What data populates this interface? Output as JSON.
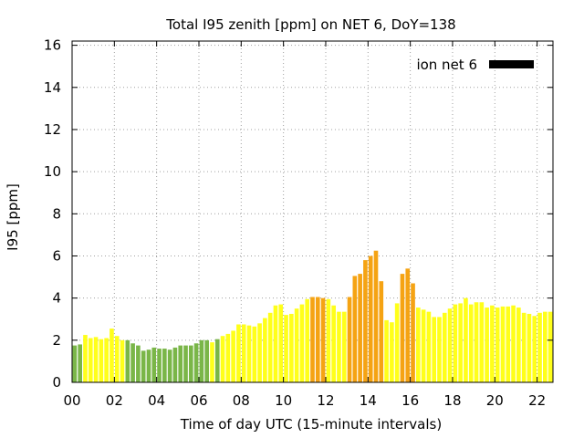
{
  "chart_data": {
    "type": "bar",
    "title": "Total I95 zenith [ppm] on NET 6, DoY=138",
    "xlabel": "Time of day UTC (15-minute intervals)",
    "ylabel": "I95 [ppm]",
    "ylim": [
      0,
      16.2
    ],
    "yticks": [
      "0",
      "2",
      "4",
      "6",
      "8",
      "10",
      "12",
      "14",
      "16"
    ],
    "xlim": [
      0,
      22.75
    ],
    "xticks": [
      "00",
      "02",
      "04",
      "06",
      "08",
      "10",
      "12",
      "14",
      "16",
      "18",
      "20",
      "22"
    ],
    "grid": true,
    "legend": {
      "label": "ion net 6",
      "position": "top-right",
      "color": "#000000"
    },
    "colors": {
      "green": "#7ab648",
      "yellow": "#ffff1a",
      "orange": "#f5a313"
    },
    "series": [
      {
        "name": "ion net 6",
        "x": [
          0,
          0.25,
          0.5,
          0.75,
          1,
          1.25,
          1.5,
          1.75,
          2,
          2.25,
          2.5,
          2.75,
          3,
          3.25,
          3.5,
          3.75,
          4,
          4.25,
          4.5,
          4.75,
          5,
          5.25,
          5.5,
          5.75,
          6,
          6.25,
          6.5,
          6.75,
          7,
          7.25,
          7.5,
          7.75,
          8,
          8.25,
          8.5,
          8.75,
          9,
          9.25,
          9.5,
          9.75,
          10,
          10.25,
          10.5,
          10.75,
          11,
          11.25,
          11.5,
          11.75,
          12,
          12.25,
          12.5,
          12.75,
          13,
          13.25,
          13.5,
          13.75,
          14,
          14.25,
          14.5,
          14.75,
          15,
          15.25,
          15.5,
          15.75,
          16,
          16.25,
          16.5,
          16.75,
          17,
          17.25,
          17.5,
          17.75,
          18,
          18.25,
          18.5,
          18.75,
          19,
          19.25,
          19.5,
          19.75,
          20,
          20.25,
          20.5,
          20.75,
          21,
          21.25,
          21.5,
          21.75,
          22,
          22.25,
          22.5
        ],
        "values": [
          1.75,
          1.8,
          2.25,
          2.1,
          2.15,
          2.05,
          2.1,
          2.55,
          2.2,
          2.0,
          2.0,
          1.85,
          1.75,
          1.5,
          1.55,
          1.65,
          1.6,
          1.6,
          1.55,
          1.65,
          1.75,
          1.75,
          1.75,
          1.85,
          2.0,
          2.0,
          1.9,
          2.05,
          2.2,
          2.3,
          2.45,
          2.75,
          2.75,
          2.7,
          2.65,
          2.8,
          3.05,
          3.3,
          3.65,
          3.7,
          3.2,
          3.25,
          3.5,
          3.7,
          3.95,
          4.05,
          4.05,
          4.0,
          3.95,
          3.65,
          3.35,
          3.35,
          4.05,
          5.05,
          5.15,
          5.8,
          6.0,
          6.25,
          4.8,
          2.95,
          2.85,
          3.75,
          5.15,
          5.4,
          4.7,
          3.55,
          3.45,
          3.35,
          3.1,
          3.1,
          3.3,
          3.5,
          3.7,
          3.75,
          4.0,
          3.7,
          3.8,
          3.8,
          3.55,
          3.65,
          3.55,
          3.6,
          3.6,
          3.65,
          3.55,
          3.3,
          3.25,
          3.15,
          3.3,
          3.35,
          3.35
        ],
        "colors": [
          "green",
          "green",
          "yellow",
          "yellow",
          "yellow",
          "yellow",
          "yellow",
          "yellow",
          "yellow",
          "yellow",
          "green",
          "green",
          "green",
          "green",
          "green",
          "green",
          "green",
          "green",
          "green",
          "green",
          "green",
          "green",
          "green",
          "green",
          "green",
          "green",
          "yellow",
          "green",
          "yellow",
          "yellow",
          "yellow",
          "yellow",
          "yellow",
          "yellow",
          "yellow",
          "yellow",
          "yellow",
          "yellow",
          "yellow",
          "yellow",
          "yellow",
          "yellow",
          "yellow",
          "yellow",
          "yellow",
          "orange",
          "orange",
          "orange",
          "yellow",
          "yellow",
          "yellow",
          "yellow",
          "orange",
          "orange",
          "orange",
          "orange",
          "orange",
          "orange",
          "orange",
          "yellow",
          "yellow",
          "yellow",
          "orange",
          "orange",
          "orange",
          "yellow",
          "yellow",
          "yellow",
          "yellow",
          "yellow",
          "yellow",
          "yellow",
          "yellow",
          "yellow",
          "yellow",
          "yellow",
          "yellow",
          "yellow",
          "yellow",
          "yellow",
          "yellow",
          "yellow",
          "yellow",
          "yellow",
          "yellow",
          "yellow",
          "yellow",
          "yellow",
          "yellow",
          "yellow",
          "yellow"
        ]
      }
    ]
  }
}
